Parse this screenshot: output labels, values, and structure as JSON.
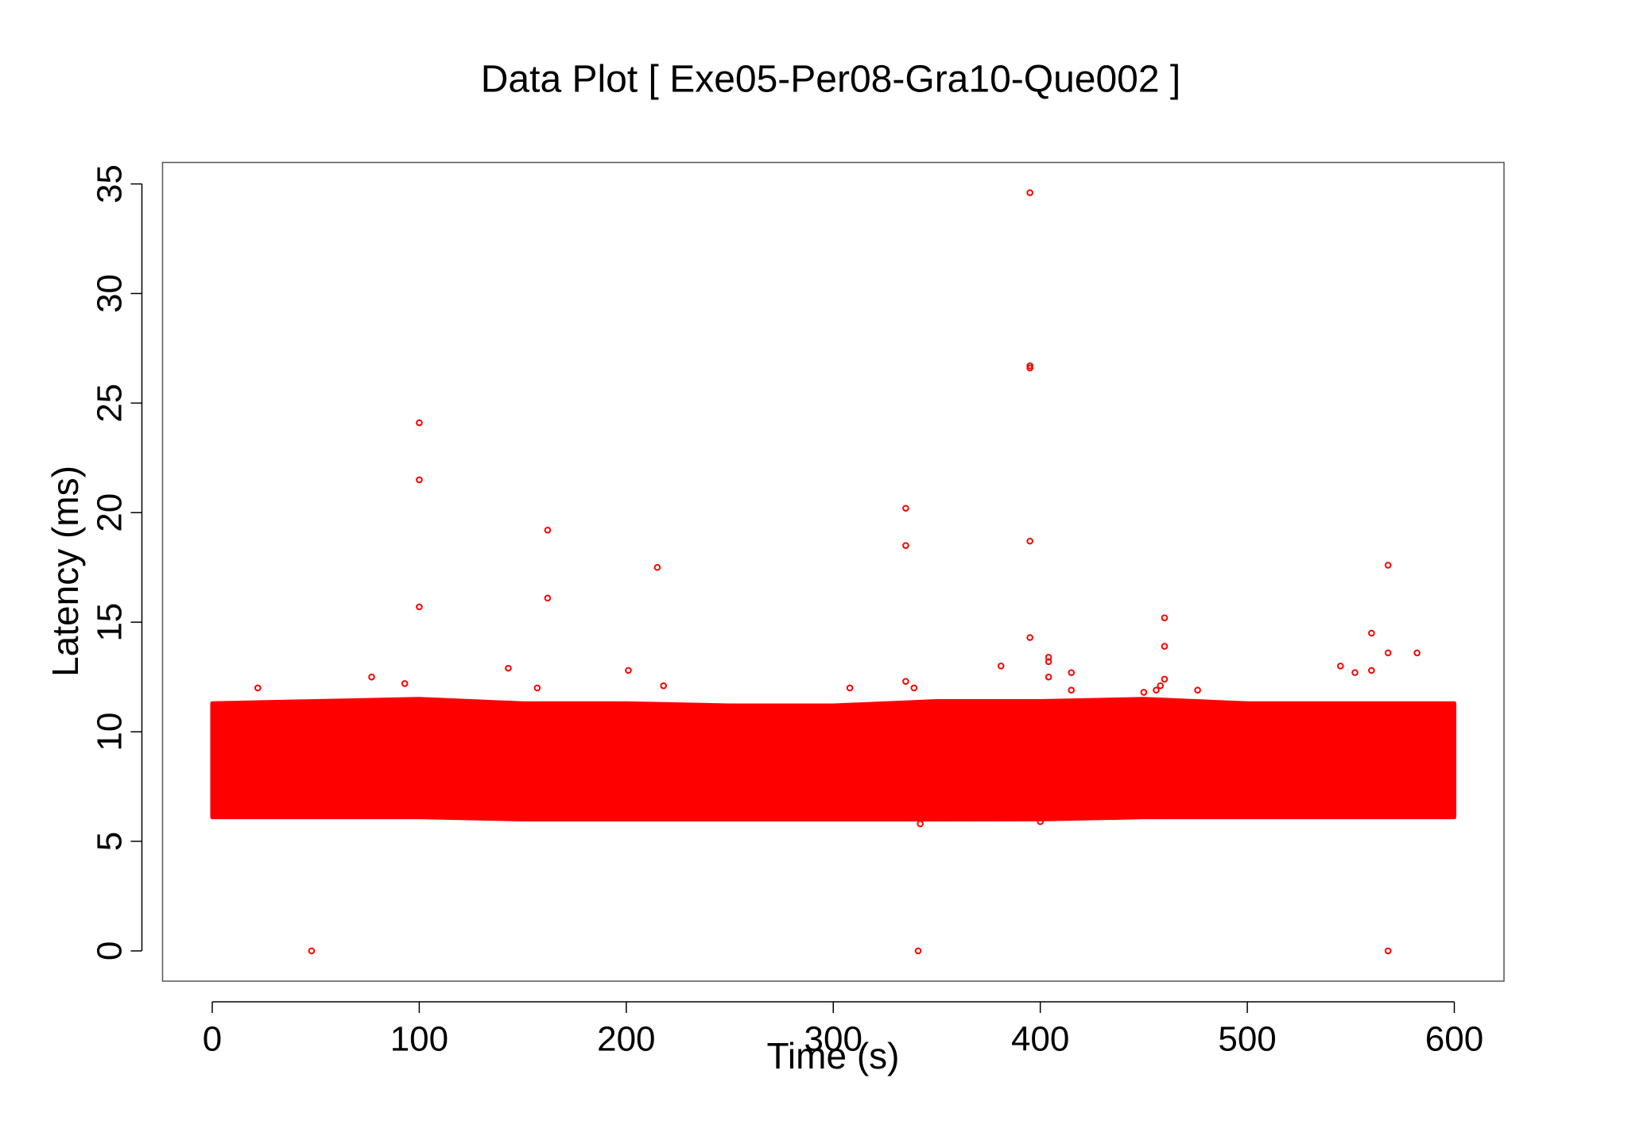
{
  "chart_data": {
    "type": "scatter",
    "title": "Data Plot [ Exe05-Per08-Gra10-Que002 ]",
    "x_label": "Time (s)",
    "y_label": "Latency (ms)",
    "color": "#ff0000",
    "xlim": [
      -24,
      624
    ],
    "xticks": [
      0,
      100,
      200,
      300,
      400,
      500,
      600
    ],
    "ylim": [
      -1.38,
      35.98
    ],
    "yticks": [
      0,
      5,
      10,
      15,
      20,
      25,
      30,
      35
    ],
    "band": {
      "x": [
        0,
        50,
        100,
        150,
        200,
        250,
        300,
        350,
        400,
        450,
        500,
        550,
        600
      ],
      "high": [
        11.3,
        11.4,
        11.5,
        11.3,
        11.3,
        11.2,
        11.2,
        11.4,
        11.4,
        11.5,
        11.3,
        11.3,
        11.3
      ],
      "low": [
        6.1,
        6.1,
        6.1,
        6.0,
        6.0,
        6.0,
        6.0,
        6.0,
        6.0,
        6.1,
        6.1,
        6.1,
        6.1
      ]
    },
    "x": [
      48,
      341,
      568,
      395,
      395,
      395,
      100,
      100,
      100,
      162,
      162,
      215,
      335,
      335,
      395,
      568,
      395,
      460,
      460,
      560,
      568,
      582,
      404,
      404,
      415,
      404,
      545,
      560,
      552,
      381,
      143,
      201,
      77,
      93,
      335,
      22,
      157,
      218,
      308,
      339,
      415,
      460,
      458,
      456,
      476,
      450,
      342,
      400
    ],
    "y": [
      0,
      0,
      0,
      34.6,
      26.7,
      26.6,
      24.1,
      21.5,
      15.7,
      19.2,
      16.1,
      17.5,
      20.2,
      18.5,
      18.7,
      17.6,
      14.3,
      15.2,
      13.9,
      14.5,
      13.6,
      13.6,
      13.4,
      13.2,
      12.7,
      12.5,
      13.0,
      12.8,
      12.7,
      13.0,
      12.9,
      12.8,
      12.5,
      12.2,
      12.3,
      12.0,
      12.0,
      12.1,
      12.0,
      12.0,
      11.9,
      12.4,
      12.1,
      11.9,
      11.9,
      11.8,
      5.8,
      5.9
    ]
  }
}
